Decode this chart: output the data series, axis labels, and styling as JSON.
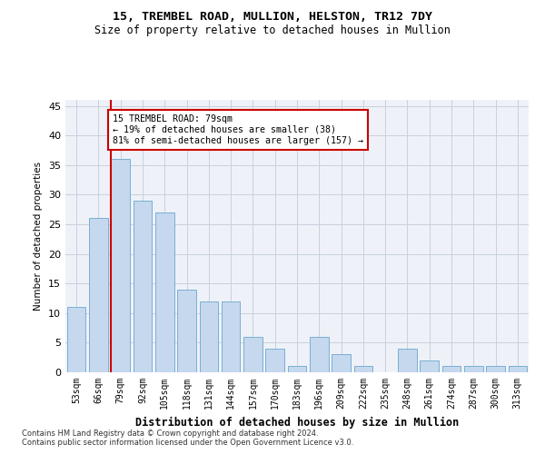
{
  "title1": "15, TREMBEL ROAD, MULLION, HELSTON, TR12 7DY",
  "title2": "Size of property relative to detached houses in Mullion",
  "xlabel": "Distribution of detached houses by size in Mullion",
  "ylabel": "Number of detached properties",
  "categories": [
    "53sqm",
    "66sqm",
    "79sqm",
    "92sqm",
    "105sqm",
    "118sqm",
    "131sqm",
    "144sqm",
    "157sqm",
    "170sqm",
    "183sqm",
    "196sqm",
    "209sqm",
    "222sqm",
    "235sqm",
    "248sqm",
    "261sqm",
    "274sqm",
    "287sqm",
    "300sqm",
    "313sqm"
  ],
  "values": [
    11,
    26,
    36,
    29,
    27,
    14,
    12,
    12,
    6,
    4,
    1,
    6,
    3,
    1,
    0,
    4,
    2,
    1,
    1,
    1,
    1
  ],
  "bar_color": "#c5d8ed",
  "bar_edge_color": "#7aafd4",
  "highlight_index": 2,
  "highlight_line_color": "#cc0000",
  "annotation_line1": "15 TREMBEL ROAD: 79sqm",
  "annotation_line2": "← 19% of detached houses are smaller (38)",
  "annotation_line3": "81% of semi-detached houses are larger (157) →",
  "annotation_box_color": "#ffffff",
  "annotation_box_edge": "#cc0000",
  "ylim": [
    0,
    46
  ],
  "yticks": [
    0,
    5,
    10,
    15,
    20,
    25,
    30,
    35,
    40,
    45
  ],
  "footnote1": "Contains HM Land Registry data © Crown copyright and database right 2024.",
  "footnote2": "Contains public sector information licensed under the Open Government Licence v3.0.",
  "bg_color": "#ffffff",
  "axes_bg_color": "#eef2f8",
  "grid_color": "#c8d0dc"
}
